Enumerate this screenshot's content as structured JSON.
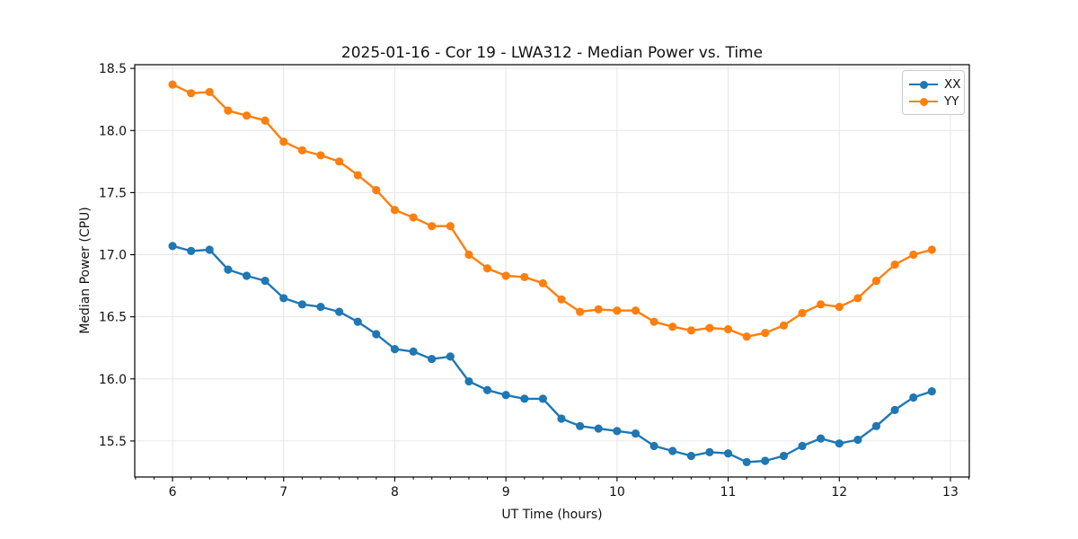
{
  "chart_data": {
    "type": "line",
    "title": "2025-01-16 - Cor 19 - LWA312 - Median Power vs. Time",
    "xlabel": "UT Time (hours)",
    "ylabel": "Median Power (CPU)",
    "xlim": [
      5.66,
      13.17
    ],
    "ylim": [
      15.21,
      18.53
    ],
    "xticks": [
      6,
      7,
      8,
      9,
      10,
      11,
      12,
      13
    ],
    "yticks": [
      15.5,
      16.0,
      16.5,
      17.0,
      17.5,
      18.0,
      18.5
    ],
    "x_minor_step": 0.16667,
    "grid": true,
    "legend_position": "upper right",
    "x": [
      6.0,
      6.167,
      6.333,
      6.5,
      6.667,
      6.833,
      7.0,
      7.167,
      7.333,
      7.5,
      7.667,
      7.833,
      8.0,
      8.167,
      8.333,
      8.5,
      8.667,
      8.833,
      9.0,
      9.167,
      9.333,
      9.5,
      9.667,
      9.833,
      10.0,
      10.167,
      10.333,
      10.5,
      10.667,
      10.833,
      11.0,
      11.167,
      11.333,
      11.5,
      11.667,
      11.833,
      12.0,
      12.167,
      12.333,
      12.5,
      12.667,
      12.833
    ],
    "series": [
      {
        "name": "XX",
        "color": "#1f77b4",
        "values": [
          17.07,
          17.03,
          17.04,
          16.88,
          16.83,
          16.79,
          16.65,
          16.6,
          16.58,
          16.54,
          16.46,
          16.36,
          16.24,
          16.22,
          16.16,
          16.18,
          15.98,
          15.91,
          15.87,
          15.84,
          15.84,
          15.68,
          15.62,
          15.6,
          15.58,
          15.56,
          15.46,
          15.42,
          15.38,
          15.41,
          15.4,
          15.33,
          15.34,
          15.38,
          15.46,
          15.52,
          15.48,
          15.51,
          15.62,
          15.75,
          15.85,
          15.9
        ]
      },
      {
        "name": "YY",
        "color": "#ff7f0e",
        "values": [
          18.37,
          18.3,
          18.31,
          18.16,
          18.12,
          18.08,
          17.91,
          17.84,
          17.8,
          17.75,
          17.64,
          17.52,
          17.36,
          17.3,
          17.23,
          17.23,
          17.0,
          16.89,
          16.83,
          16.82,
          16.77,
          16.64,
          16.54,
          16.56,
          16.55,
          16.55,
          16.46,
          16.42,
          16.39,
          16.41,
          16.4,
          16.34,
          16.37,
          16.43,
          16.53,
          16.6,
          16.58,
          16.65,
          16.79,
          16.92,
          17.0,
          17.04
        ]
      }
    ]
  }
}
